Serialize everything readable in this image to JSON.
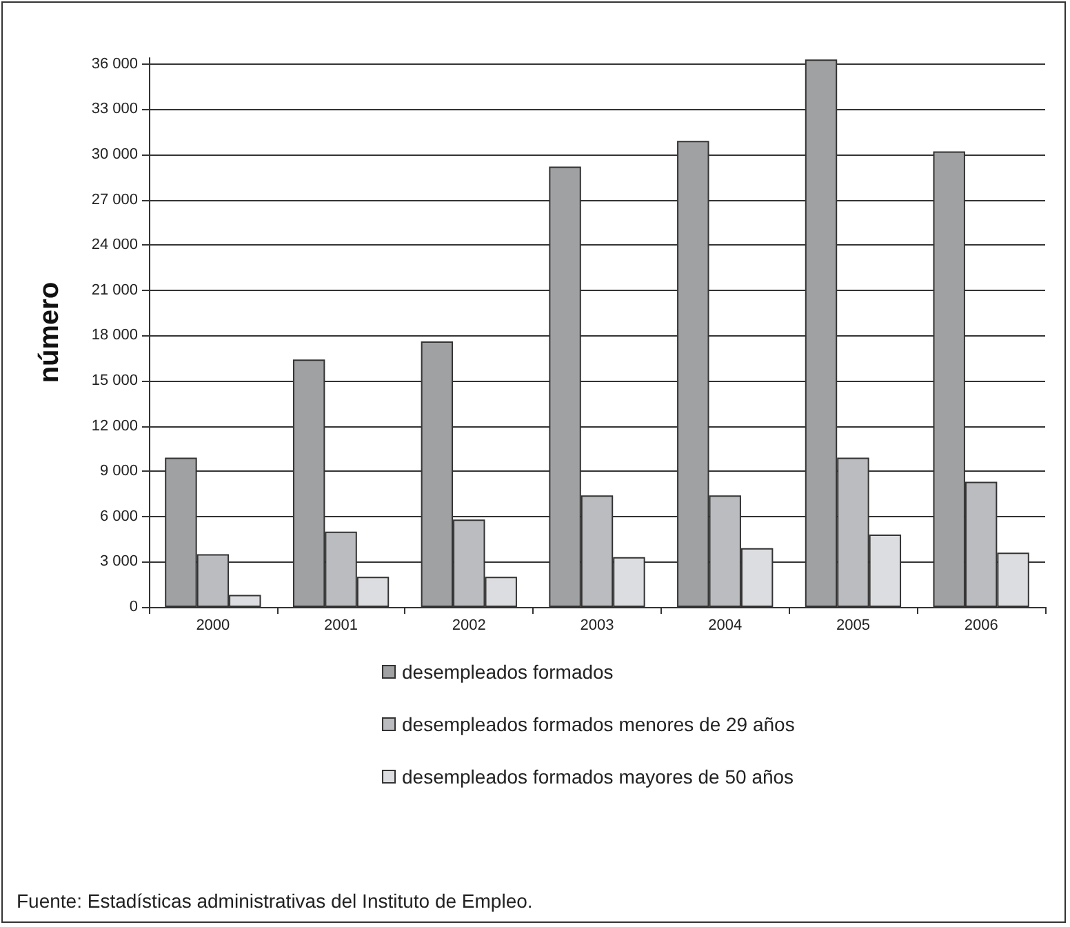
{
  "chart_data": {
    "type": "bar",
    "ylabel": "número",
    "categories": [
      "2000",
      "2001",
      "2002",
      "2003",
      "2004",
      "2005",
      "2006"
    ],
    "series": [
      {
        "name": "desempleados formados",
        "color": "#a0a1a3",
        "values": [
          9900,
          16400,
          17600,
          29200,
          30900,
          36300,
          30200
        ]
      },
      {
        "name": "desempleados formados menores de 29 años",
        "color": "#bbbcc0",
        "values": [
          3500,
          5000,
          5800,
          7400,
          7400,
          9900,
          8300
        ]
      },
      {
        "name": "desempleados formados mayores de 50 años",
        "color": "#dcdde0",
        "values": [
          800,
          2000,
          2000,
          3300,
          3900,
          4800,
          3600
        ]
      }
    ],
    "ylim": [
      0,
      36400
    ],
    "yticks": [
      {
        "value": 0,
        "label": "0"
      },
      {
        "value": 3000,
        "label": "3 000"
      },
      {
        "value": 6000,
        "label": "6 000"
      },
      {
        "value": 9000,
        "label": "9 000"
      },
      {
        "value": 12000,
        "label": "12 000"
      },
      {
        "value": 15000,
        "label": "15 000"
      },
      {
        "value": 18000,
        "label": "18 000"
      },
      {
        "value": 21000,
        "label": "21 000"
      },
      {
        "value": 24000,
        "label": "24 000"
      },
      {
        "value": 27000,
        "label": "27 000"
      },
      {
        "value": 30000,
        "label": "30 000"
      },
      {
        "value": 33000,
        "label": "33 000"
      },
      {
        "value": 36000,
        "label": "36 000"
      }
    ],
    "grid": "y",
    "legend": "bottom",
    "annotations": [
      "Fuente: Estadísticas administrativas del Instituto de Empleo."
    ]
  }
}
